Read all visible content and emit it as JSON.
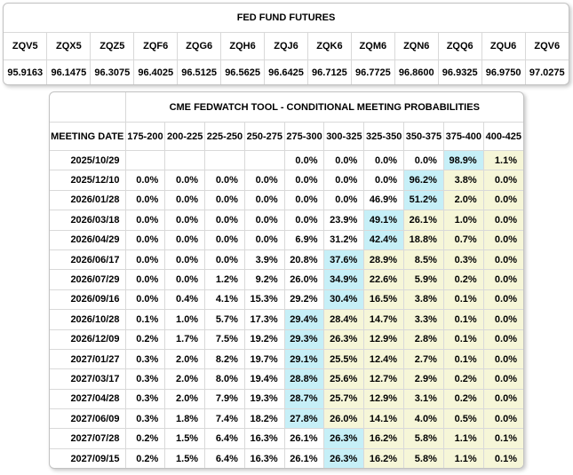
{
  "futures": {
    "title": "FED FUND FUTURES",
    "columns": [
      "ZQV5",
      "ZQX5",
      "ZQZ5",
      "ZQF6",
      "ZQG6",
      "ZQH6",
      "ZQJ6",
      "ZQK6",
      "ZQM6",
      "ZQN6",
      "ZQQ6",
      "ZQU6",
      "ZQV6"
    ],
    "values": [
      "95.9163",
      "96.1475",
      "96.3075",
      "96.4025",
      "96.5125",
      "96.5625",
      "96.6425",
      "96.7125",
      "96.7725",
      "96.8600",
      "96.9325",
      "96.9750",
      "97.0275"
    ]
  },
  "fedwatch": {
    "title": "CME FEDWATCH TOOL - CONDITIONAL MEETING PROBABILITIES",
    "date_header": "MEETING DATE",
    "range_headers": [
      "175-200",
      "200-225",
      "225-250",
      "250-275",
      "275-300",
      "300-325",
      "325-350",
      "350-375",
      "375-400",
      "400-425"
    ],
    "rows": [
      {
        "date": "2025/10/29",
        "cells": [
          "",
          "",
          "",
          "",
          "0.0%",
          "0.0%",
          "0.0%",
          "0.0%",
          "98.9%",
          "1.1%"
        ],
        "hl": [
          "",
          "",
          "",
          "",
          "",
          "",
          "",
          "",
          "b",
          "y"
        ]
      },
      {
        "date": "2025/12/10",
        "cells": [
          "0.0%",
          "0.0%",
          "0.0%",
          "0.0%",
          "0.0%",
          "0.0%",
          "0.0%",
          "96.2%",
          "3.8%",
          "0.0%"
        ],
        "hl": [
          "",
          "",
          "",
          "",
          "",
          "",
          "",
          "b",
          "y",
          "y"
        ]
      },
      {
        "date": "2026/01/28",
        "cells": [
          "0.0%",
          "0.0%",
          "0.0%",
          "0.0%",
          "0.0%",
          "0.0%",
          "46.9%",
          "51.2%",
          "2.0%",
          "0.0%"
        ],
        "hl": [
          "",
          "",
          "",
          "",
          "",
          "",
          "",
          "b",
          "y",
          "y"
        ]
      },
      {
        "date": "2026/03/18",
        "cells": [
          "0.0%",
          "0.0%",
          "0.0%",
          "0.0%",
          "0.0%",
          "23.9%",
          "49.1%",
          "26.1%",
          "1.0%",
          "0.0%"
        ],
        "hl": [
          "",
          "",
          "",
          "",
          "",
          "",
          "b",
          "y",
          "y",
          "y"
        ]
      },
      {
        "date": "2026/04/29",
        "cells": [
          "0.0%",
          "0.0%",
          "0.0%",
          "0.0%",
          "6.9%",
          "31.2%",
          "42.4%",
          "18.8%",
          "0.7%",
          "0.0%"
        ],
        "hl": [
          "",
          "",
          "",
          "",
          "",
          "",
          "b",
          "y",
          "y",
          "y"
        ]
      },
      {
        "date": "2026/06/17",
        "cells": [
          "0.0%",
          "0.0%",
          "0.0%",
          "3.9%",
          "20.8%",
          "37.6%",
          "28.9%",
          "8.5%",
          "0.3%",
          "0.0%"
        ],
        "hl": [
          "",
          "",
          "",
          "",
          "",
          "b",
          "y",
          "y",
          "y",
          "y"
        ]
      },
      {
        "date": "2026/07/29",
        "cells": [
          "0.0%",
          "0.0%",
          "1.2%",
          "9.2%",
          "26.0%",
          "34.9%",
          "22.6%",
          "5.9%",
          "0.2%",
          "0.0%"
        ],
        "hl": [
          "",
          "",
          "",
          "",
          "",
          "b",
          "y",
          "y",
          "y",
          "y"
        ]
      },
      {
        "date": "2026/09/16",
        "cells": [
          "0.0%",
          "0.4%",
          "4.1%",
          "15.3%",
          "29.2%",
          "30.4%",
          "16.5%",
          "3.8%",
          "0.1%",
          "0.0%"
        ],
        "hl": [
          "",
          "",
          "",
          "",
          "",
          "b",
          "y",
          "y",
          "y",
          "y"
        ]
      },
      {
        "date": "2026/10/28",
        "cells": [
          "0.1%",
          "1.0%",
          "5.7%",
          "17.3%",
          "29.4%",
          "28.4%",
          "14.7%",
          "3.3%",
          "0.1%",
          "0.0%"
        ],
        "hl": [
          "",
          "",
          "",
          "",
          "b",
          "y",
          "y",
          "y",
          "y",
          "y"
        ]
      },
      {
        "date": "2026/12/09",
        "cells": [
          "0.2%",
          "1.7%",
          "7.5%",
          "19.2%",
          "29.3%",
          "26.3%",
          "12.9%",
          "2.8%",
          "0.1%",
          "0.0%"
        ],
        "hl": [
          "",
          "",
          "",
          "",
          "b",
          "y",
          "y",
          "y",
          "y",
          "y"
        ]
      },
      {
        "date": "2027/01/27",
        "cells": [
          "0.3%",
          "2.0%",
          "8.2%",
          "19.7%",
          "29.1%",
          "25.5%",
          "12.4%",
          "2.7%",
          "0.1%",
          "0.0%"
        ],
        "hl": [
          "",
          "",
          "",
          "",
          "b",
          "y",
          "y",
          "y",
          "y",
          "y"
        ]
      },
      {
        "date": "2027/03/17",
        "cells": [
          "0.3%",
          "2.0%",
          "8.0%",
          "19.4%",
          "28.8%",
          "25.6%",
          "12.7%",
          "2.9%",
          "0.2%",
          "0.0%"
        ],
        "hl": [
          "",
          "",
          "",
          "",
          "b",
          "y",
          "y",
          "y",
          "y",
          "y"
        ]
      },
      {
        "date": "2027/04/28",
        "cells": [
          "0.3%",
          "2.0%",
          "7.9%",
          "19.3%",
          "28.7%",
          "25.7%",
          "12.9%",
          "3.1%",
          "0.2%",
          "0.0%"
        ],
        "hl": [
          "",
          "",
          "",
          "",
          "b",
          "y",
          "y",
          "y",
          "y",
          "y"
        ]
      },
      {
        "date": "2027/06/09",
        "cells": [
          "0.3%",
          "1.8%",
          "7.4%",
          "18.2%",
          "27.8%",
          "26.0%",
          "14.1%",
          "4.0%",
          "0.5%",
          "0.0%"
        ],
        "hl": [
          "",
          "",
          "",
          "",
          "b",
          "y",
          "y",
          "y",
          "y",
          "y"
        ]
      },
      {
        "date": "2027/07/28",
        "cells": [
          "0.2%",
          "1.5%",
          "6.4%",
          "16.3%",
          "26.1%",
          "26.3%",
          "16.2%",
          "5.8%",
          "1.1%",
          "0.1%"
        ],
        "hl": [
          "",
          "",
          "",
          "",
          "",
          "b",
          "y",
          "y",
          "y",
          "y"
        ]
      },
      {
        "date": "2027/09/15",
        "cells": [
          "0.2%",
          "1.5%",
          "6.4%",
          "16.3%",
          "26.1%",
          "26.3%",
          "16.2%",
          "5.8%",
          "1.1%",
          "0.1%"
        ],
        "hl": [
          "",
          "",
          "",
          "",
          "",
          "b",
          "y",
          "y",
          "y",
          "y"
        ]
      }
    ]
  },
  "colors": {
    "highlight_blue": "#c6eff7",
    "highlight_yellow": "#f6f6d8",
    "grid_border": "#d9d9d9",
    "outer_border": "#c2c2c2"
  }
}
